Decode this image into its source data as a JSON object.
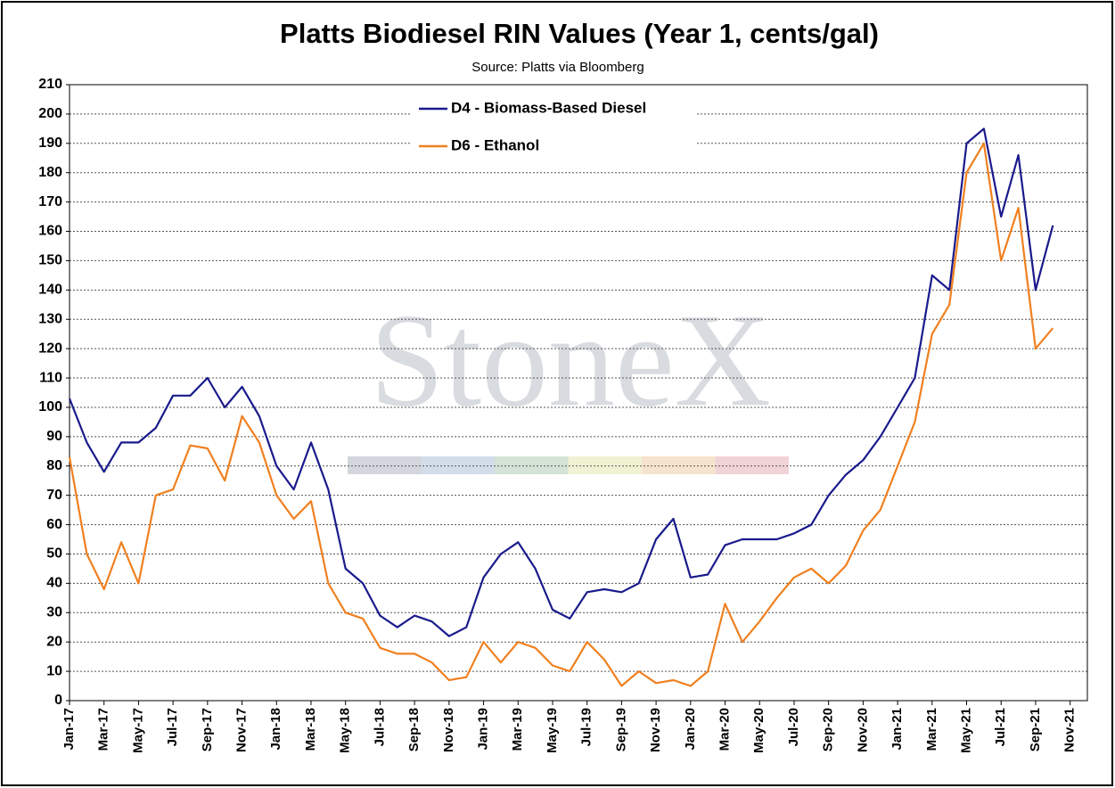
{
  "chart_data": {
    "type": "line",
    "title": "Platts Biodiesel RIN Values (Year 1, cents/gal)",
    "subtitle": "Source: Platts via Bloomberg",
    "watermark": "StoneX",
    "categories": [
      "Jan-17",
      null,
      "Mar-17",
      null,
      "May-17",
      null,
      "Jul-17",
      null,
      "Sep-17",
      null,
      "Nov-17",
      null,
      "Jan-18",
      null,
      "Mar-18",
      null,
      "May-18",
      null,
      "Jul-18",
      null,
      "Sep-18",
      null,
      "Nov-18",
      null,
      "Jan-19",
      null,
      "Mar-19",
      null,
      "May-19",
      null,
      "Jul-19",
      null,
      "Sep-19",
      null,
      "Nov-19",
      null,
      "Jan-20",
      null,
      "Mar-20",
      null,
      "May-20",
      null,
      "Jul-20",
      null,
      "Sep-20",
      null,
      "Nov-20",
      null,
      "Jan-21",
      null,
      "Mar-21",
      null,
      "May-21",
      null,
      "Jul-21",
      null,
      "Sep-21",
      null,
      "Nov-21",
      null
    ],
    "series": [
      {
        "name": "D4 - Biomass-Based Diesel",
        "color": "#1a1a8c",
        "values": [
          103,
          88,
          78,
          88,
          88,
          93,
          104,
          104,
          110,
          100,
          107,
          97,
          80,
          72,
          88,
          72,
          45,
          40,
          29,
          25,
          29,
          27,
          22,
          25,
          42,
          50,
          54,
          45,
          31,
          28,
          37,
          38,
          37,
          40,
          55,
          62,
          42,
          43,
          53,
          55,
          55,
          55,
          57,
          60,
          70,
          77,
          82,
          90,
          100,
          110,
          145,
          140,
          190,
          195,
          165,
          186,
          140,
          162,
          null,
          null
        ]
      },
      {
        "name": "D6 - Ethanol",
        "color": "#f08020",
        "values": [
          83,
          50,
          38,
          54,
          40,
          70,
          72,
          87,
          86,
          75,
          97,
          88,
          70,
          62,
          68,
          40,
          30,
          28,
          18,
          16,
          16,
          13,
          7,
          8,
          20,
          13,
          20,
          18,
          12,
          10,
          20,
          14,
          5,
          10,
          6,
          7,
          5,
          10,
          33,
          20,
          27,
          35,
          42,
          45,
          40,
          46,
          58,
          65,
          80,
          95,
          125,
          135,
          180,
          190,
          150,
          168,
          120,
          127,
          null,
          null
        ]
      }
    ],
    "ylim": [
      0,
      210
    ],
    "yticks": [
      0,
      10,
      20,
      30,
      40,
      50,
      60,
      70,
      80,
      90,
      100,
      110,
      120,
      130,
      140,
      150,
      160,
      170,
      180,
      190,
      200,
      210
    ],
    "grid": true,
    "legend": "top-left"
  }
}
